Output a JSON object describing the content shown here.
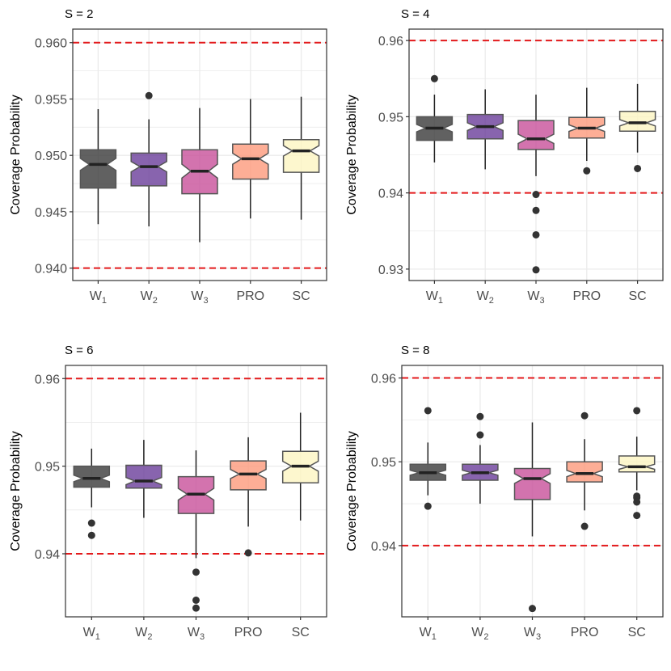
{
  "colors": {
    "threshold": "#e31a1c",
    "box_fill": [
      "#3a3a3a",
      "#6a3d9a",
      "#c8509a",
      "#fc9a7c",
      "#fcf5c2"
    ],
    "outline": "#555555",
    "whisker": "#222222",
    "grid": "#ebebeb",
    "frame": "#333333"
  },
  "chart_data": [
    {
      "type": "box",
      "title": "S = 2",
      "ylabel": "Coverage Probability",
      "ylim": [
        0.9389,
        0.9612
      ],
      "yticks": [
        0.94,
        0.945,
        0.95,
        0.955,
        0.96
      ],
      "ytick_labels": [
        "0.940",
        "0.945",
        "0.950",
        "0.955",
        "0.960"
      ],
      "hlines": [
        0.94,
        0.96
      ],
      "categories": [
        {
          "base": "W",
          "sub": "1"
        },
        {
          "base": "W",
          "sub": "2"
        },
        {
          "base": "W",
          "sub": "3"
        },
        {
          "base": "PRO",
          "sub": ""
        },
        {
          "base": "SC",
          "sub": ""
        }
      ],
      "boxes": [
        {
          "median": 0.9492,
          "q1": 0.9471,
          "q3": 0.9505,
          "whisker_low": 0.9439,
          "whisker_high": 0.9541,
          "outliers": []
        },
        {
          "median": 0.949,
          "q1": 0.9473,
          "q3": 0.9502,
          "whisker_low": 0.9437,
          "whisker_high": 0.9532,
          "outliers": [
            0.9553
          ]
        },
        {
          "median": 0.9486,
          "q1": 0.9466,
          "q3": 0.9505,
          "whisker_low": 0.9423,
          "whisker_high": 0.9542,
          "outliers": []
        },
        {
          "median": 0.9497,
          "q1": 0.9479,
          "q3": 0.951,
          "whisker_low": 0.9444,
          "whisker_high": 0.955,
          "outliers": []
        },
        {
          "median": 0.9504,
          "q1": 0.9485,
          "q3": 0.9514,
          "whisker_low": 0.9443,
          "whisker_high": 0.9552,
          "outliers": []
        }
      ]
    },
    {
      "type": "box",
      "title": "S = 4",
      "ylabel": "Coverage Probability",
      "ylim": [
        0.9285,
        0.9615
      ],
      "yticks": [
        0.93,
        0.94,
        0.95,
        0.96
      ],
      "ytick_labels": [
        "0.93",
        "0.94",
        "0.95",
        "0.96"
      ],
      "hlines": [
        0.94,
        0.96
      ],
      "categories": [
        {
          "base": "W",
          "sub": "1"
        },
        {
          "base": "W",
          "sub": "2"
        },
        {
          "base": "W",
          "sub": "3"
        },
        {
          "base": "PRO",
          "sub": ""
        },
        {
          "base": "SC",
          "sub": ""
        }
      ],
      "boxes": [
        {
          "median": 0.9485,
          "q1": 0.9469,
          "q3": 0.95,
          "whisker_low": 0.944,
          "whisker_high": 0.9529,
          "outliers": [
            0.955
          ]
        },
        {
          "median": 0.9487,
          "q1": 0.9471,
          "q3": 0.9503,
          "whisker_low": 0.9431,
          "whisker_high": 0.9536,
          "outliers": []
        },
        {
          "median": 0.9471,
          "q1": 0.9457,
          "q3": 0.9495,
          "whisker_low": 0.9422,
          "whisker_high": 0.9529,
          "outliers": [
            0.9398,
            0.9377,
            0.9345,
            0.9299
          ]
        },
        {
          "median": 0.9485,
          "q1": 0.9472,
          "q3": 0.9499,
          "whisker_low": 0.9442,
          "whisker_high": 0.9538,
          "outliers": [
            0.9429
          ]
        },
        {
          "median": 0.9492,
          "q1": 0.9481,
          "q3": 0.9507,
          "whisker_low": 0.9453,
          "whisker_high": 0.9543,
          "outliers": [
            0.9432
          ]
        }
      ]
    },
    {
      "type": "box",
      "title": "S = 6",
      "ylabel": "Coverage Probability",
      "ylim": [
        0.9328,
        0.9615
      ],
      "yticks": [
        0.94,
        0.95,
        0.96
      ],
      "ytick_labels": [
        "0.94",
        "0.95",
        "0.96"
      ],
      "hlines": [
        0.94,
        0.96
      ],
      "categories": [
        {
          "base": "W",
          "sub": "1"
        },
        {
          "base": "W",
          "sub": "2"
        },
        {
          "base": "W",
          "sub": "3"
        },
        {
          "base": "PRO",
          "sub": ""
        },
        {
          "base": "SC",
          "sub": ""
        }
      ],
      "boxes": [
        {
          "median": 0.9486,
          "q1": 0.9476,
          "q3": 0.95,
          "whisker_low": 0.9453,
          "whisker_high": 0.952,
          "outliers": [
            0.9435,
            0.9421
          ]
        },
        {
          "median": 0.9483,
          "q1": 0.9475,
          "q3": 0.9501,
          "whisker_low": 0.9441,
          "whisker_high": 0.953,
          "outliers": []
        },
        {
          "median": 0.9468,
          "q1": 0.9446,
          "q3": 0.9488,
          "whisker_low": 0.9395,
          "whisker_high": 0.9518,
          "outliers": [
            0.9379,
            0.9347,
            0.9338
          ]
        },
        {
          "median": 0.9491,
          "q1": 0.9473,
          "q3": 0.9506,
          "whisker_low": 0.9431,
          "whisker_high": 0.9533,
          "outliers": [
            0.9401
          ]
        },
        {
          "median": 0.95,
          "q1": 0.9481,
          "q3": 0.9517,
          "whisker_low": 0.9438,
          "whisker_high": 0.9561,
          "outliers": []
        }
      ]
    },
    {
      "type": "box",
      "title": "S = 8",
      "ylabel": "Coverage Probability",
      "ylim": [
        0.9315,
        0.9615
      ],
      "yticks": [
        0.94,
        0.95,
        0.96
      ],
      "ytick_labels": [
        "0.94",
        "0.95",
        "0.96"
      ],
      "hlines": [
        0.94,
        0.96
      ],
      "categories": [
        {
          "base": "W",
          "sub": "1"
        },
        {
          "base": "W",
          "sub": "2"
        },
        {
          "base": "W",
          "sub": "3"
        },
        {
          "base": "PRO",
          "sub": ""
        },
        {
          "base": "SC",
          "sub": ""
        }
      ],
      "boxes": [
        {
          "median": 0.9487,
          "q1": 0.9478,
          "q3": 0.9497,
          "whisker_low": 0.946,
          "whisker_high": 0.9523,
          "outliers": [
            0.9561,
            0.9447
          ]
        },
        {
          "median": 0.9487,
          "q1": 0.9478,
          "q3": 0.9497,
          "whisker_low": 0.945,
          "whisker_high": 0.952,
          "outliers": [
            0.9554,
            0.9532
          ]
        },
        {
          "median": 0.948,
          "q1": 0.9455,
          "q3": 0.9492,
          "whisker_low": 0.9411,
          "whisker_high": 0.9547,
          "outliers": [
            0.9325
          ]
        },
        {
          "median": 0.9486,
          "q1": 0.9476,
          "q3": 0.95,
          "whisker_low": 0.9442,
          "whisker_high": 0.9527,
          "outliers": [
            0.9555,
            0.9423
          ]
        },
        {
          "median": 0.9494,
          "q1": 0.9488,
          "q3": 0.9507,
          "whisker_low": 0.9466,
          "whisker_high": 0.953,
          "outliers": [
            0.9561,
            0.9459,
            0.9457,
            0.9452,
            0.9436
          ]
        }
      ]
    }
  ]
}
